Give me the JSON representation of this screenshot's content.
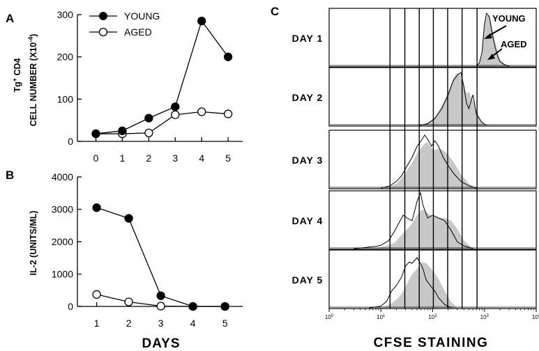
{
  "colors": {
    "ink": "#000000",
    "histogram_fill": "#c8c8c8",
    "background": "#ffffff"
  },
  "panels": {
    "a": {
      "letter": "A"
    },
    "b": {
      "letter": "B"
    },
    "c": {
      "letter": "C"
    }
  },
  "chart_data": [
    {
      "panel": "A",
      "type": "line",
      "ylabel_line1": "Tg",
      "ylabel_sup": "+",
      "ylabel_line1_rest": " CD4",
      "ylabel_line2": "CELL NUMBER (X10",
      "ylabel_line2_sup": "-4",
      "ylabel_line2_rest": ")",
      "x": [
        0,
        1,
        2,
        3,
        4,
        5
      ],
      "xticks": [
        "0",
        "1",
        "2",
        "3",
        "4",
        "5"
      ],
      "ylim": [
        0,
        300
      ],
      "yticks": [
        "0",
        "100",
        "200",
        "300"
      ],
      "legend_position": "top-left",
      "series": [
        {
          "name": "YOUNG",
          "marker": "filled-circle",
          "values": [
            18,
            25,
            55,
            82,
            285,
            200
          ]
        },
        {
          "name": "AGED",
          "marker": "open-circle",
          "values": [
            18,
            18,
            20,
            63,
            70,
            65
          ]
        }
      ]
    },
    {
      "panel": "B",
      "type": "line",
      "xlabel": "DAYS",
      "ylabel": "IL-2 (UNITS/ML)",
      "x": [
        1,
        2,
        3,
        4,
        5
      ],
      "xticks": [
        "1",
        "2",
        "3",
        "4",
        "5"
      ],
      "ylim": [
        0,
        4000
      ],
      "yticks": [
        "0",
        "1000",
        "2000",
        "3000",
        "4000"
      ],
      "series": [
        {
          "name": "YOUNG",
          "marker": "filled-circle",
          "values": [
            3050,
            2720,
            330,
            0,
            0
          ]
        },
        {
          "name": "AGED",
          "marker": "open-circle",
          "values": [
            370,
            140,
            10,
            0,
            0
          ]
        }
      ]
    },
    {
      "panel": "C",
      "type": "area",
      "xlabel": "CFSE STAINING",
      "xscale": "log",
      "xlim": [
        1,
        10000
      ],
      "xticks": [
        "10",
        "10",
        "10",
        "10",
        "10"
      ],
      "xtick_exponents": [
        "0",
        "1",
        "2",
        "3",
        "4"
      ],
      "division_lines_cfse": [
        15,
        29,
        55,
        103,
        195,
        370,
        720
      ],
      "annotations": [
        "YOUNG",
        "AGED"
      ],
      "rows": [
        {
          "label": "DAY 1",
          "young": [
            [
              700,
              0
            ],
            [
              800,
              6
            ],
            [
              900,
              25
            ],
            [
              1000,
              75
            ],
            [
              1100,
              95
            ],
            [
              1250,
              88
            ],
            [
              1400,
              60
            ],
            [
              1600,
              35
            ],
            [
              1800,
              18
            ],
            [
              2000,
              8
            ],
            [
              2400,
              3
            ],
            [
              3000,
              0
            ]
          ],
          "aged": [
            [
              700,
              0
            ],
            [
              800,
              5
            ],
            [
              900,
              20
            ],
            [
              1000,
              70
            ],
            [
              1100,
              90
            ],
            [
              1250,
              92
            ],
            [
              1400,
              70
            ],
            [
              1600,
              45
            ],
            [
              1800,
              25
            ],
            [
              2000,
              12
            ],
            [
              2400,
              4
            ],
            [
              3000,
              0
            ]
          ]
        },
        {
          "label": "DAY 2",
          "young": [
            [
              55,
              0
            ],
            [
              80,
              3
            ],
            [
              110,
              12
            ],
            [
              150,
              30
            ],
            [
              200,
              55
            ],
            [
              250,
              80
            ],
            [
              300,
              90
            ],
            [
              350,
              95
            ],
            [
              400,
              70
            ],
            [
              450,
              40
            ],
            [
              500,
              30
            ],
            [
              600,
              55
            ],
            [
              700,
              20
            ],
            [
              900,
              5
            ],
            [
              1100,
              0
            ]
          ],
          "aged": [
            [
              55,
              0
            ],
            [
              80,
              4
            ],
            [
              110,
              15
            ],
            [
              150,
              35
            ],
            [
              200,
              60
            ],
            [
              250,
              85
            ],
            [
              300,
              95
            ],
            [
              350,
              88
            ],
            [
              400,
              72
            ],
            [
              450,
              58
            ],
            [
              500,
              60
            ],
            [
              600,
              45
            ],
            [
              700,
              25
            ],
            [
              900,
              6
            ],
            [
              1100,
              0
            ]
          ]
        },
        {
          "label": "DAY 3",
          "young": [
            [
              10,
              0
            ],
            [
              15,
              4
            ],
            [
              20,
              12
            ],
            [
              25,
              22
            ],
            [
              30,
              35
            ],
            [
              40,
              55
            ],
            [
              50,
              75
            ],
            [
              60,
              85
            ],
            [
              70,
              95
            ],
            [
              80,
              88
            ],
            [
              95,
              75
            ],
            [
              110,
              85
            ],
            [
              130,
              75
            ],
            [
              160,
              55
            ],
            [
              200,
              40
            ],
            [
              260,
              25
            ],
            [
              350,
              12
            ],
            [
              500,
              4
            ],
            [
              700,
              0
            ]
          ],
          "aged": [
            [
              10,
              0
            ],
            [
              15,
              3
            ],
            [
              20,
              8
            ],
            [
              25,
              18
            ],
            [
              30,
              28
            ],
            [
              40,
              45
            ],
            [
              50,
              62
            ],
            [
              60,
              72
            ],
            [
              70,
              80
            ],
            [
              80,
              82
            ],
            [
              95,
              72
            ],
            [
              110,
              68
            ],
            [
              130,
              70
            ],
            [
              160,
              68
            ],
            [
              200,
              60
            ],
            [
              260,
              45
            ],
            [
              350,
              25
            ],
            [
              500,
              8
            ],
            [
              700,
              0
            ]
          ]
        },
        {
          "label": "DAY 4",
          "young": [
            [
              3,
              0
            ],
            [
              5,
              2
            ],
            [
              8,
              4
            ],
            [
              10,
              6
            ],
            [
              14,
              14
            ],
            [
              18,
              30
            ],
            [
              22,
              45
            ],
            [
              27,
              60
            ],
            [
              32,
              55
            ],
            [
              40,
              50
            ],
            [
              50,
              85
            ],
            [
              58,
              100
            ],
            [
              65,
              78
            ],
            [
              80,
              55
            ],
            [
              100,
              60
            ],
            [
              130,
              55
            ],
            [
              170,
              50
            ],
            [
              230,
              32
            ],
            [
              300,
              12
            ],
            [
              400,
              5
            ],
            [
              600,
              0
            ]
          ],
          "aged": [
            [
              3,
              0
            ],
            [
              5,
              1
            ],
            [
              8,
              2
            ],
            [
              10,
              3
            ],
            [
              14,
              6
            ],
            [
              18,
              10
            ],
            [
              22,
              18
            ],
            [
              27,
              28
            ],
            [
              32,
              35
            ],
            [
              40,
              45
            ],
            [
              50,
              60
            ],
            [
              58,
              68
            ],
            [
              65,
              70
            ],
            [
              80,
              64
            ],
            [
              100,
              58
            ],
            [
              130,
              55
            ],
            [
              170,
              55
            ],
            [
              230,
              50
            ],
            [
              300,
              35
            ],
            [
              400,
              15
            ],
            [
              600,
              0
            ]
          ]
        },
        {
          "label": "DAY 5",
          "young": [
            [
              6,
              0
            ],
            [
              10,
              3
            ],
            [
              13,
              12
            ],
            [
              16,
              30
            ],
            [
              20,
              40
            ],
            [
              25,
              55
            ],
            [
              30,
              75
            ],
            [
              35,
              82
            ],
            [
              40,
              80
            ],
            [
              50,
              90
            ],
            [
              58,
              80
            ],
            [
              65,
              70
            ],
            [
              75,
              50
            ],
            [
              90,
              40
            ],
            [
              110,
              30
            ],
            [
              130,
              18
            ],
            [
              170,
              6
            ],
            [
              230,
              0
            ]
          ],
          "aged": [
            [
              6,
              0
            ],
            [
              10,
              1
            ],
            [
              13,
              4
            ],
            [
              16,
              8
            ],
            [
              20,
              15
            ],
            [
              25,
              25
            ],
            [
              30,
              38
            ],
            [
              35,
              50
            ],
            [
              40,
              60
            ],
            [
              50,
              70
            ],
            [
              58,
              78
            ],
            [
              65,
              82
            ],
            [
              75,
              80
            ],
            [
              90,
              72
            ],
            [
              110,
              62
            ],
            [
              130,
              52
            ],
            [
              170,
              30
            ],
            [
              230,
              10
            ],
            [
              300,
              0
            ]
          ]
        }
      ]
    }
  ]
}
